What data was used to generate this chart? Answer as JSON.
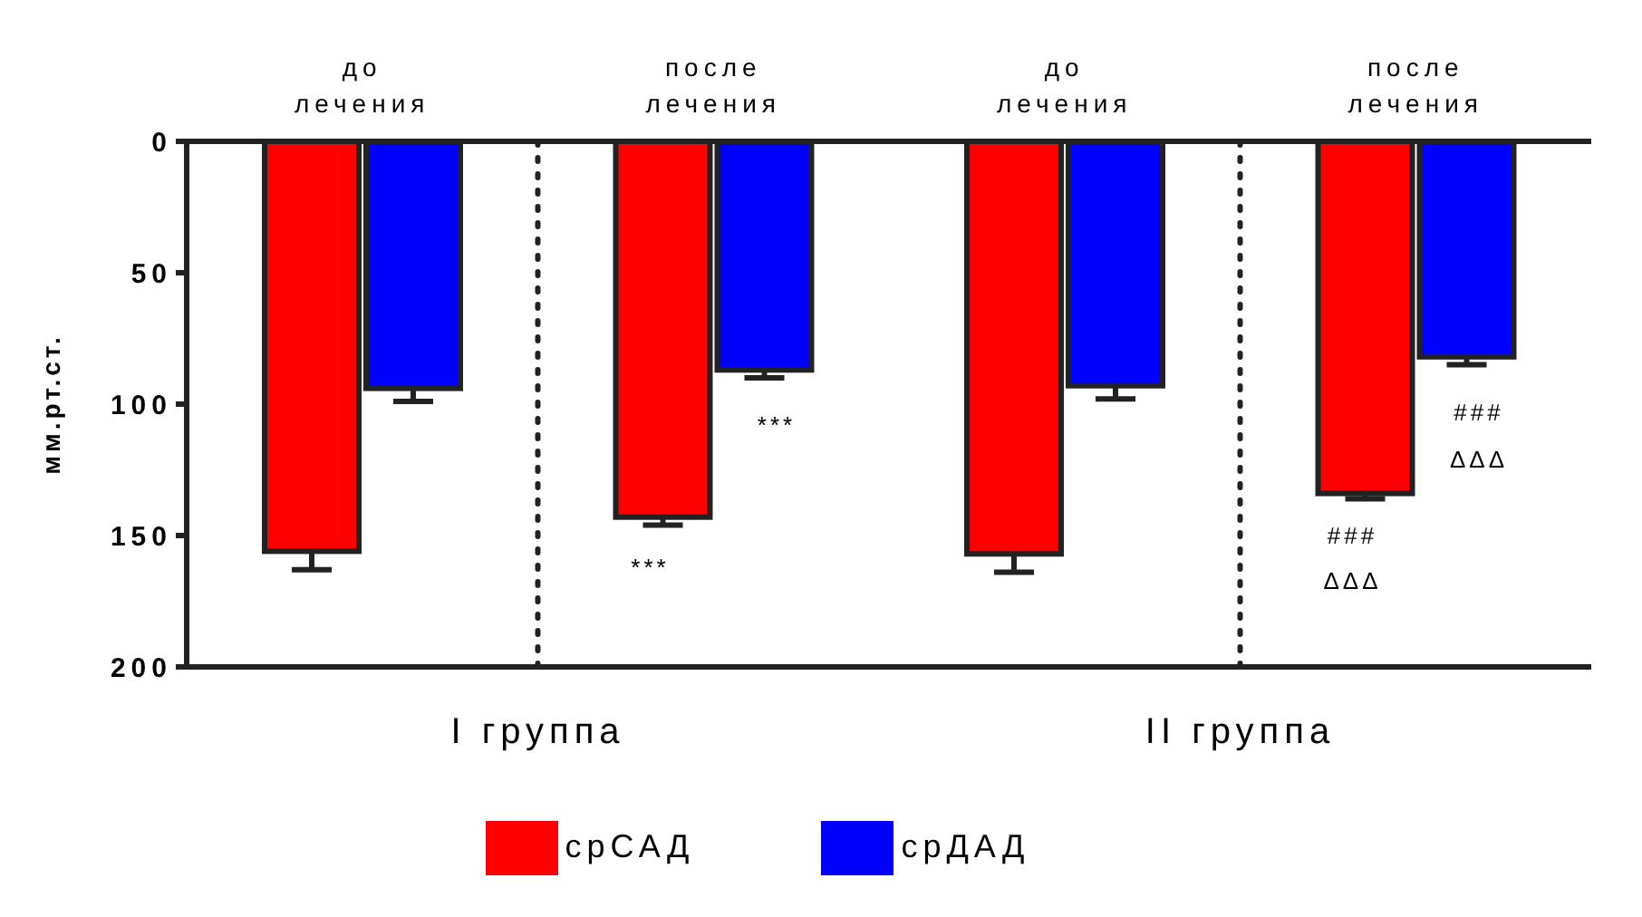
{
  "chart_data": {
    "type": "bar",
    "ylabel": "мм.рт.ст.",
    "categories": [
      "до лечения",
      "после лечения",
      "до лечения",
      "после лечения"
    ],
    "series": [
      {
        "name": "срСАД",
        "color": "#ff0000",
        "values": [
          156,
          143,
          157,
          134
        ],
        "errors": [
          [
            156,
            163
          ],
          [
            143,
            146
          ],
          [
            157,
            164
          ],
          [
            134,
            136
          ]
        ]
      },
      {
        "name": "срДАД",
        "color": "#0000ff",
        "values": [
          94,
          87,
          93,
          82
        ],
        "errors": [
          [
            94,
            99
          ],
          [
            87,
            90
          ],
          [
            93,
            98
          ],
          [
            82,
            85
          ]
        ]
      }
    ],
    "ylim": [
      200,
      0
    ],
    "yticks": [
      0,
      50,
      100,
      150,
      200
    ],
    "legend": "bottom",
    "annotations": [
      "I группа",
      "II группа",
      "***",
      "***",
      "###",
      "ΔΔΔ",
      "###",
      "ΔΔΔ"
    ]
  }
}
